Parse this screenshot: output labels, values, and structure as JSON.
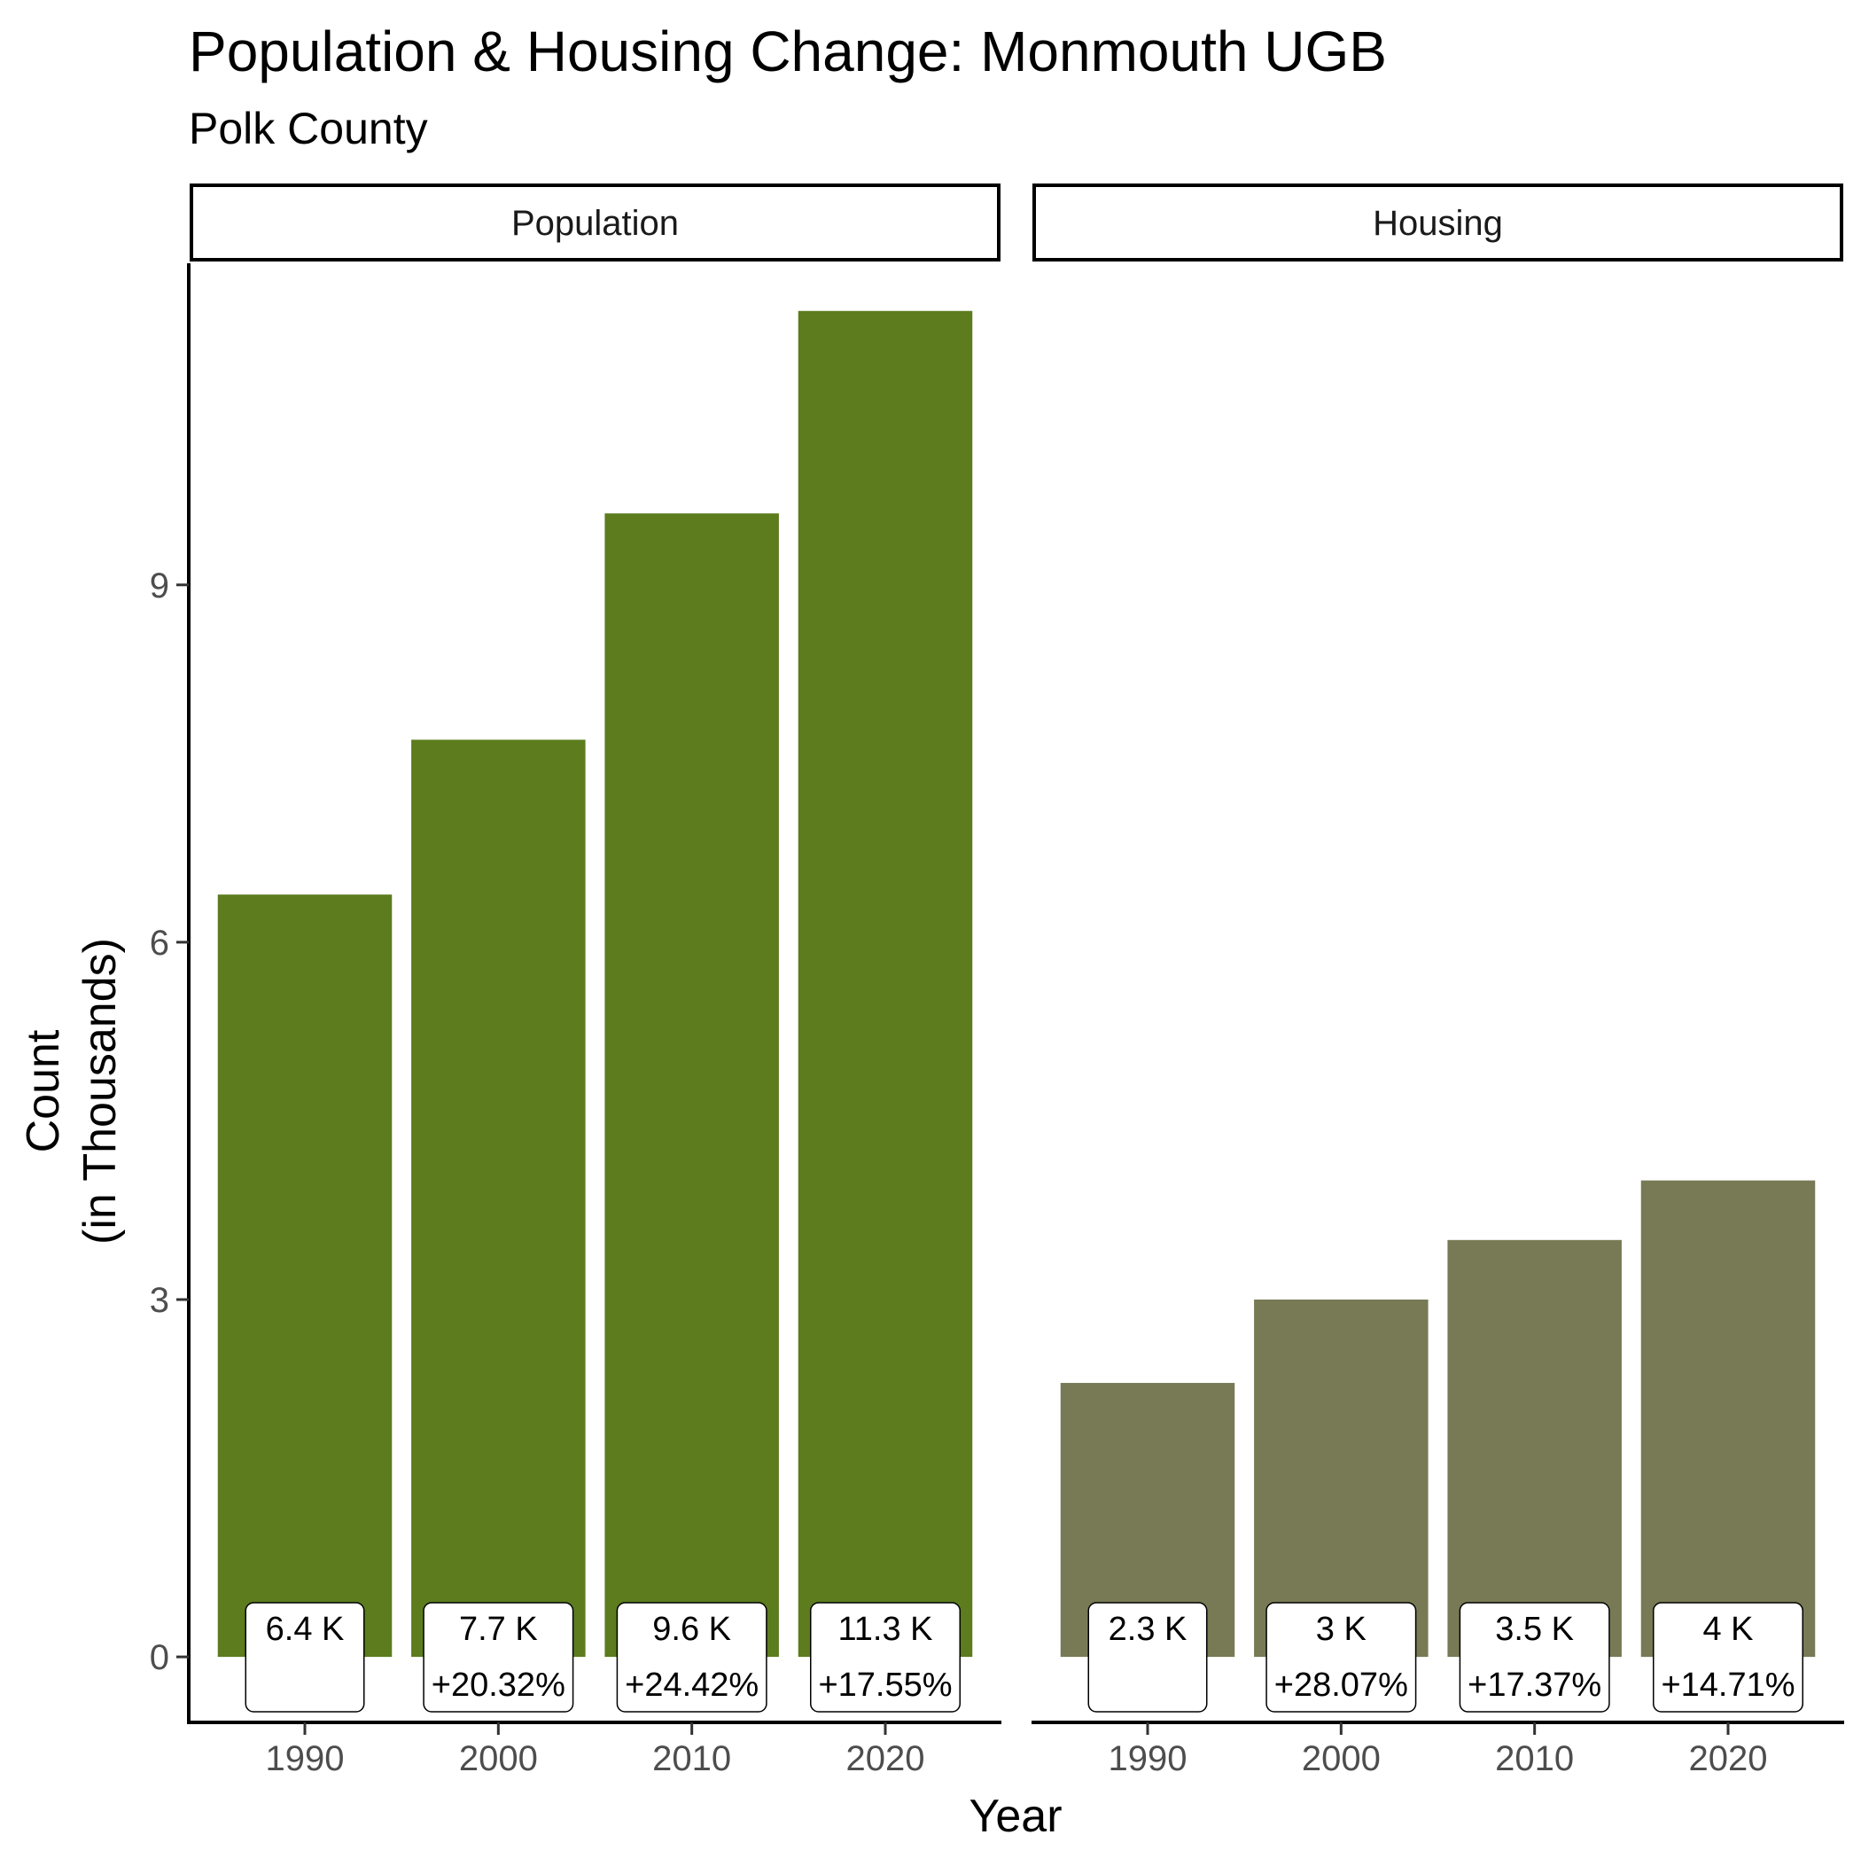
{
  "chart_data": {
    "type": "bar",
    "title": "Population & Housing Change: Monmouth UGB",
    "subtitle": "Polk County",
    "xlabel": "Year",
    "ylabel": [
      "Count",
      "(in Thousands)"
    ],
    "categories": [
      "1990",
      "2000",
      "2010",
      "2020"
    ],
    "ylim": [
      -0.55,
      11.7
    ],
    "yticks": [
      0,
      3,
      6,
      9
    ],
    "grid": false,
    "legend": "none",
    "panels": [
      {
        "name": "Population",
        "color": "#5c7c1e",
        "values": [
          6.4,
          7.7,
          9.6,
          11.3
        ],
        "labels": [
          [
            "6.4 K",
            ""
          ],
          [
            "7.7 K",
            "+20.32%"
          ],
          [
            "9.6 K",
            "+24.42%"
          ],
          [
            "11.3 K",
            "+17.55%"
          ]
        ]
      },
      {
        "name": "Housing",
        "color": "#787a55",
        "values": [
          2.3,
          3.0,
          3.5,
          4.0
        ],
        "labels": [
          [
            "2.3 K",
            ""
          ],
          [
            "3 K",
            "+28.07%"
          ],
          [
            "3.5 K",
            "+17.37%"
          ],
          [
            "4 K",
            "+14.71%"
          ]
        ]
      }
    ]
  }
}
